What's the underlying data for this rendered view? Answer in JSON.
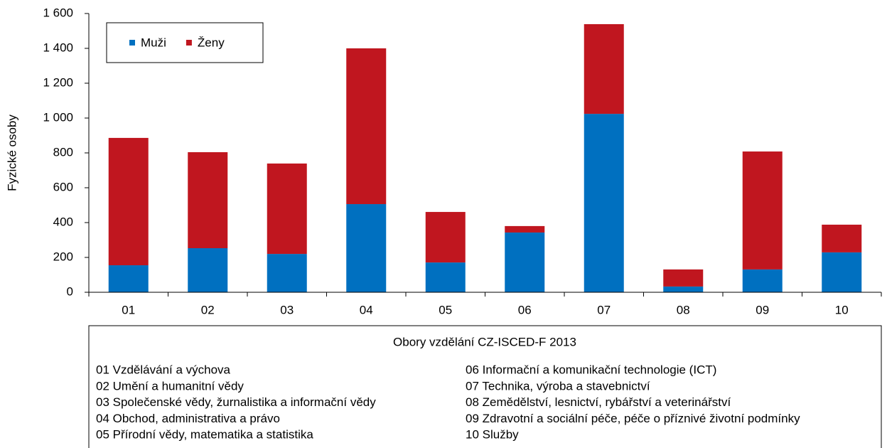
{
  "chart_data": {
    "type": "stacked_bar",
    "y_label": "Fyzické osoby",
    "categories": [
      "01",
      "02",
      "03",
      "04",
      "05",
      "06",
      "07",
      "08",
      "09",
      "10"
    ],
    "series": [
      {
        "name": "Muži",
        "color": "#0070c0",
        "values": [
          155,
          253,
          220,
          506,
          171,
          343,
          1024,
          33,
          131,
          229
        ]
      },
      {
        "name": "Ženy",
        "color": "#c0161f",
        "values": [
          731,
          551,
          519,
          894,
          290,
          37,
          515,
          98,
          677,
          159
        ]
      }
    ],
    "ylim": [
      0,
      1600
    ],
    "yticks": [
      0,
      200,
      400,
      600,
      800,
      {
        "value": 1000,
        "label": "1 000"
      },
      {
        "value": 1200,
        "label": "1 200"
      },
      {
        "value": 1400,
        "label": "1 400"
      },
      {
        "value": 1600,
        "label": "1 600"
      }
    ],
    "legend": "top-left",
    "category_key": {
      "title": "Obory vzdělání CZ-ISCED-F  2013",
      "items": [
        "01 Vzdělávání a výchova",
        "02 Umění a humanitní vědy",
        "03 Společenské vědy, žurnalistika a informační vědy",
        "04 Obchod, administrativa a právo",
        "05 Přírodní vědy, matematika a statistika",
        "06 Informační a komunikační technologie (ICT)",
        "07 Technika, výroba a stavebnictví",
        "08 Zemědělství, lesnictví, rybářství a veterinářství",
        "09 Zdravotní a sociální péče, péče o příznivé životní podmínky",
        "10 Služby"
      ]
    }
  }
}
